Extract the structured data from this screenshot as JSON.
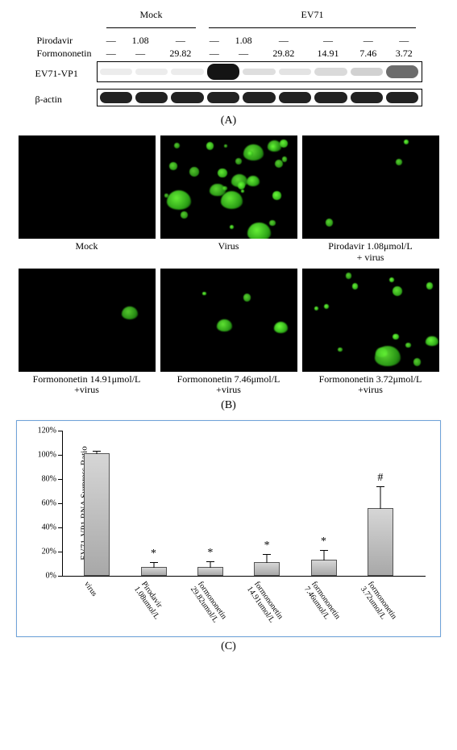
{
  "panelA": {
    "group_labels": [
      "Mock",
      "EV71"
    ],
    "row1_label": "Pirodavir",
    "row2_label": "Formononetin",
    "row1_vals": [
      "—",
      "1.08",
      "—",
      "—",
      "1.08",
      "—",
      "—",
      "—",
      "—"
    ],
    "row2_vals": [
      "—",
      "—",
      "29.82",
      "—",
      "—",
      "29.82",
      "14.91",
      "7.46",
      "3.72"
    ],
    "band1_label": "EV71-VP1",
    "band2_label": "β-actin",
    "band_intensities": [
      0.02,
      0.02,
      0.02,
      1.0,
      0.08,
      0.06,
      0.1,
      0.14,
      0.6
    ],
    "caption": "(A)"
  },
  "panelB": {
    "cells": [
      {
        "label": "Mock",
        "pattern": "none"
      },
      {
        "label": "Virus",
        "pattern": "heavy"
      },
      {
        "label": "Pirodavir 1.08μmol/L\n+ virus",
        "pattern": "few"
      },
      {
        "label": "Formononetin 14.91μmol/L\n+virus",
        "pattern": "one"
      },
      {
        "label": "Formononetin 7.46μmol/L\n+virus",
        "pattern": "some"
      },
      {
        "label": "Formononetin 3.72μmol/L\n+virus",
        "pattern": "many"
      }
    ],
    "caption": "(B)"
  },
  "panelC": {
    "ylabel": "EV71-VP1 RNA Surpress Ratio",
    "ymax": 120,
    "ytick_step": 20,
    "bars": [
      {
        "label": "virus",
        "value": 100,
        "err": 2,
        "sig": ""
      },
      {
        "label": "Pirodavir\n1.08umol/L",
        "value": 6,
        "err": 4,
        "sig": "*"
      },
      {
        "label": "formononetin\n29.82umol/L",
        "value": 6,
        "err": 5,
        "sig": "*"
      },
      {
        "label": "formononetin\n14.91umol/L",
        "value": 10,
        "err": 7,
        "sig": "*"
      },
      {
        "label": "formononetin\n7.46umol/L",
        "value": 12,
        "err": 8,
        "sig": "*"
      },
      {
        "label": "formononetin\n3.72umol/L",
        "value": 55,
        "err": 18,
        "sig": "#"
      }
    ],
    "bar_color": "#b8b8b8",
    "border_color": "#6fa3d9",
    "caption": "(C)"
  }
}
